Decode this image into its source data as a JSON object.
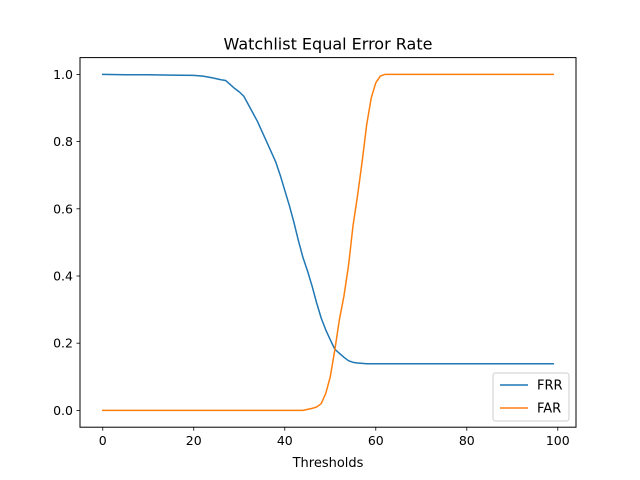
{
  "chart_data": {
    "type": "line",
    "title": "Watchlist Equal Error Rate",
    "xlabel": "Thresholds",
    "ylabel": "",
    "xlim": [
      -5,
      104
    ],
    "ylim": [
      -0.05,
      1.05
    ],
    "xticks": [
      0,
      20,
      40,
      60,
      80,
      100
    ],
    "yticks": [
      0.0,
      0.2,
      0.4,
      0.6,
      0.8,
      1.0
    ],
    "xtick_labels": [
      "0",
      "20",
      "40",
      "60",
      "80",
      "100"
    ],
    "ytick_labels": [
      "0.0",
      "0.2",
      "0.4",
      "0.6",
      "0.8",
      "1.0"
    ],
    "grid": false,
    "legend_position": "lower-right",
    "x": [
      0,
      5,
      10,
      15,
      20,
      22,
      24,
      26,
      27,
      28,
      29,
      30,
      31,
      32,
      33,
      34,
      35,
      36,
      37,
      38,
      39,
      40,
      41,
      42,
      43,
      44,
      45,
      46,
      47,
      48,
      49,
      50,
      51,
      52,
      53,
      54,
      55,
      56,
      57,
      58,
      59,
      60,
      61,
      62,
      63,
      65,
      70,
      80,
      90,
      99
    ],
    "series": [
      {
        "name": "FRR",
        "color": "#1f77b4",
        "values": [
          1.0,
          0.999,
          0.999,
          0.998,
          0.997,
          0.995,
          0.99,
          0.984,
          0.982,
          0.97,
          0.958,
          0.948,
          0.935,
          0.91,
          0.885,
          0.86,
          0.83,
          0.8,
          0.77,
          0.74,
          0.7,
          0.655,
          0.61,
          0.56,
          0.505,
          0.455,
          0.415,
          0.37,
          0.32,
          0.275,
          0.24,
          0.21,
          0.182,
          0.17,
          0.158,
          0.148,
          0.143,
          0.141,
          0.14,
          0.139,
          0.139,
          0.139,
          0.139,
          0.139,
          0.139,
          0.139,
          0.139,
          0.139,
          0.139,
          0.139
        ]
      },
      {
        "name": "FAR",
        "color": "#ff7f0e",
        "values": [
          0.0,
          0.0,
          0.0,
          0.0,
          0.0,
          0.0,
          0.0,
          0.0,
          0.0,
          0.0,
          0.0,
          0.0,
          0.0,
          0.0,
          0.0,
          0.0,
          0.0,
          0.0,
          0.0,
          0.0,
          0.0,
          0.0,
          0.0,
          0.0,
          0.0,
          0.0,
          0.003,
          0.006,
          0.01,
          0.02,
          0.05,
          0.1,
          0.18,
          0.27,
          0.34,
          0.43,
          0.55,
          0.64,
          0.74,
          0.85,
          0.93,
          0.975,
          0.995,
          1.0,
          1.0,
          1.0,
          1.0,
          1.0,
          1.0,
          1.0
        ]
      }
    ]
  }
}
